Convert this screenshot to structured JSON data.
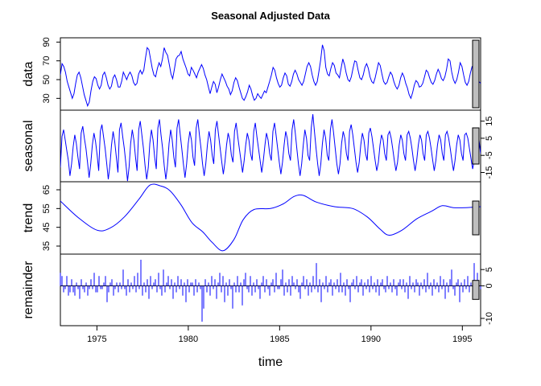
{
  "chart_data": {
    "type": "line",
    "title": "Seasonal Adjusted Data",
    "xlabel": "time",
    "x_start": 1973.0,
    "x_end": 1996.0,
    "x_ticks": [
      1975,
      1980,
      1985,
      1990,
      1995
    ],
    "frequency": 12,
    "colors": {
      "series": "#0000ff",
      "axis": "#000000",
      "bar_fill": "#bebebe"
    },
    "panels": [
      {
        "name": "data",
        "ylabel": "data",
        "style": "line",
        "ylim": [
          20,
          92
        ],
        "ticks": [
          30,
          50,
          70,
          90
        ],
        "tick_side": "left",
        "values": [
          55,
          67,
          64,
          58,
          48,
          42,
          36,
          30,
          35,
          46,
          55,
          58,
          52,
          43,
          34,
          28,
          22,
          26,
          38,
          48,
          53,
          51,
          44,
          40,
          44,
          55,
          58,
          52,
          44,
          40,
          43,
          52,
          55,
          50,
          42,
          42,
          48,
          58,
          54,
          50,
          55,
          58,
          54,
          47,
          44,
          46,
          56,
          60,
          56,
          60,
          73,
          84,
          82,
          72,
          62,
          55,
          53,
          62,
          68,
          64,
          72,
          84,
          79,
          76,
          66,
          56,
          51,
          61,
          72,
          75,
          76,
          80,
          72,
          67,
          62,
          56,
          54,
          63,
          60,
          56,
          52,
          58,
          62,
          66,
          62,
          55,
          50,
          42,
          35,
          42,
          48,
          45,
          36,
          42,
          50,
          56,
          52,
          48,
          43,
          40,
          34,
          38,
          47,
          52,
          49,
          42,
          36,
          30,
          28,
          32,
          37,
          44,
          40,
          33,
          28,
          30,
          35,
          32,
          30,
          34,
          38,
          36,
          42,
          48,
          55,
          63,
          60,
          52,
          46,
          42,
          44,
          52,
          57,
          54,
          45,
          43,
          48,
          56,
          60,
          56,
          50,
          47,
          44,
          48,
          56,
          64,
          68,
          64,
          55,
          48,
          44,
          48,
          59,
          71,
          87,
          81,
          63,
          56,
          54,
          62,
          68,
          65,
          57,
          55,
          52,
          62,
          72,
          66,
          57,
          50,
          48,
          53,
          62,
          70,
          69,
          60,
          52,
          50,
          55,
          63,
          67,
          62,
          53,
          48,
          46,
          52,
          60,
          68,
          65,
          56,
          48,
          45,
          47,
          53,
          58,
          55,
          48,
          43,
          40,
          44,
          52,
          57,
          53,
          46,
          41,
          34,
          30,
          36,
          44,
          49,
          47,
          42,
          43,
          46,
          53,
          60,
          58,
          52,
          47,
          45,
          49,
          56,
          61,
          57,
          51,
          49,
          53,
          61,
          72,
          70,
          58,
          50,
          46,
          50,
          58,
          68,
          64,
          55,
          47,
          44,
          48,
          57,
          64,
          63,
          57,
          50,
          48,
          46
        ]
      },
      {
        "name": "seasonal",
        "ylabel": "seasonal",
        "style": "line",
        "ylim": [
          -19,
          20
        ],
        "ticks": [
          15,
          5,
          -5,
          -15
        ],
        "tick_side": "right",
        "values": [
          -12,
          6,
          10,
          4,
          -2,
          -8,
          -17,
          -10,
          0,
          7,
          2,
          -6,
          -13,
          8,
          12,
          5,
          -1,
          -9,
          -18,
          -10,
          1,
          8,
          3,
          -5,
          -14,
          9,
          13,
          6,
          -1,
          -10,
          -19,
          -11,
          1,
          9,
          3,
          -6,
          -15,
          10,
          14,
          6,
          -1,
          -10,
          -20,
          -12,
          2,
          10,
          4,
          -6,
          -14,
          10,
          15,
          7,
          -1,
          -11,
          -19,
          -12,
          2,
          10,
          4,
          -6,
          -13,
          11,
          16,
          7,
          -1,
          -11,
          -19,
          -11,
          2,
          10,
          4,
          -6,
          -12,
          11,
          16,
          7,
          -1,
          -10,
          -18,
          -10,
          2,
          9,
          4,
          -6,
          -11,
          11,
          16,
          7,
          -1,
          -10,
          -17,
          -10,
          1,
          9,
          4,
          -5,
          -10,
          10,
          15,
          7,
          -1,
          -9,
          -16,
          -9,
          1,
          8,
          4,
          -5,
          -9,
          9,
          14,
          6,
          -1,
          -8,
          -15,
          -8,
          1,
          8,
          4,
          -4,
          -8,
          9,
          14,
          6,
          -1,
          -8,
          -15,
          -8,
          1,
          8,
          4,
          -4,
          -8,
          9,
          14,
          7,
          -1,
          -9,
          -16,
          -9,
          1,
          9,
          5,
          -4,
          -8,
          10,
          16,
          8,
          -1,
          -10,
          -17,
          -10,
          1,
          10,
          5,
          -5,
          -8,
          11,
          19,
          9,
          -1,
          -10,
          -17,
          -10,
          2,
          10,
          5,
          -5,
          -8,
          10,
          16,
          8,
          -1,
          -10,
          -16,
          -10,
          2,
          9,
          5,
          -4,
          -8,
          9,
          13,
          7,
          -1,
          -9,
          -15,
          -9,
          1,
          8,
          4,
          -4,
          -8,
          8,
          11,
          6,
          -1,
          -8,
          -14,
          -9,
          1,
          7,
          4,
          -4,
          -8,
          7,
          9,
          5,
          -1,
          -8,
          -14,
          -9,
          1,
          7,
          4,
          -4,
          -8,
          7,
          9,
          5,
          -1,
          -8,
          -14,
          -8,
          1,
          7,
          4,
          -4,
          -8,
          7,
          9,
          5,
          -1,
          -8,
          -14,
          -8,
          1,
          7,
          4,
          -4,
          -8,
          7,
          9,
          5,
          -1,
          -8,
          -14,
          -8,
          1,
          7,
          4,
          -4,
          -8,
          7,
          8,
          5,
          -1,
          -7,
          -13,
          -8,
          1,
          6,
          4,
          -4
        ]
      },
      {
        "name": "trend",
        "ylabel": "trend",
        "style": "line",
        "ylim": [
          32,
          68
        ],
        "ticks": [
          35,
          45,
          55,
          65
        ],
        "tick_side": "left",
        "knots_x": [
          1973.0,
          1974.0,
          1975.0,
          1975.7,
          1976.5,
          1977.3,
          1977.9,
          1978.5,
          1979.0,
          1979.6,
          1980.2,
          1980.8,
          1981.3,
          1981.9,
          1982.5,
          1983.0,
          1983.6,
          1984.5,
          1985.2,
          1985.8,
          1986.3,
          1987.0,
          1988.0,
          1989.0,
          1989.8,
          1990.5,
          1991.0,
          1991.7,
          1992.5,
          1993.3,
          1993.9,
          1994.5,
          1995.2,
          1996.0
        ],
        "knots_y": [
          59.0,
          50.0,
          43.5,
          44.5,
          50.5,
          60.0,
          67.5,
          67.0,
          64.5,
          57.0,
          47.5,
          42.5,
          37.0,
          32.5,
          38.5,
          49.0,
          54.5,
          55.0,
          57.5,
          61.5,
          62.0,
          58.5,
          56.0,
          55.0,
          50.5,
          44.0,
          40.8,
          43.5,
          49.5,
          53.5,
          56.5,
          55.5,
          55.5,
          56.0
        ]
      },
      {
        "name": "remainder",
        "ylabel": "remainder",
        "style": "bars",
        "ylim": [
          -11.5,
          9
        ],
        "ticks": [
          5,
          0,
          -10
        ],
        "tick_side": "right",
        "values": [
          4,
          3,
          -2,
          -1,
          3,
          -3,
          -2,
          2,
          -2,
          -3,
          1,
          -1,
          -4,
          2,
          -1,
          -2,
          1,
          -3,
          -1,
          2,
          -1,
          4,
          -2,
          -2,
          3,
          -1,
          -1,
          1,
          3,
          -5,
          -2,
          1,
          2,
          -3,
          -1,
          1,
          -2,
          1,
          -1,
          5,
          -1,
          -3,
          2,
          -2,
          1,
          -1,
          3,
          -2,
          4,
          -1,
          8,
          -3,
          1,
          -2,
          2,
          -4,
          3,
          -1,
          1,
          2,
          -2,
          4,
          -1,
          -3,
          5,
          -2,
          1,
          3,
          -1,
          2,
          -4,
          1,
          -2,
          3,
          -1,
          2,
          -3,
          1,
          -5,
          2,
          -2,
          1,
          1,
          -3,
          2,
          -2,
          1,
          -1,
          -11,
          -7,
          2,
          -2,
          1,
          -3,
          3,
          -1,
          2,
          -4,
          1,
          4,
          -2,
          3,
          -5,
          1,
          -3,
          2,
          -1,
          -7,
          1,
          -2,
          3,
          -2,
          1,
          -6,
          2,
          4,
          -1,
          -2,
          3,
          -3,
          1,
          -2,
          2,
          -1,
          -4,
          1,
          3,
          -2,
          2,
          -1,
          -3,
          1,
          2,
          -2,
          4,
          -1,
          -1,
          2,
          5,
          -3,
          1,
          -2,
          2,
          -3,
          3,
          1,
          -1,
          2,
          -2,
          -4,
          1,
          3,
          -1,
          2,
          -3,
          1,
          -2,
          3,
          -1,
          7,
          -2,
          2,
          -5,
          1,
          -1,
          3,
          -2,
          1,
          2,
          -3,
          1,
          -1,
          2,
          -2,
          4,
          -2,
          1,
          -3,
          2,
          -1,
          -5,
          1,
          2,
          -1,
          3,
          -2,
          1,
          2,
          -3,
          1,
          -1,
          2,
          -2,
          3,
          -1,
          1,
          -2,
          2,
          -3,
          1,
          2,
          -1,
          -2,
          3,
          -1,
          1,
          -2,
          2,
          -1,
          -3,
          1,
          2,
          -1,
          2,
          -2,
          1,
          -4,
          3,
          -1,
          1,
          -2,
          2,
          1,
          -3,
          1,
          -1,
          2,
          -2,
          4,
          -1,
          1,
          -3,
          2,
          -1,
          1,
          -2,
          3,
          -1,
          2,
          -4,
          1,
          -2,
          2,
          5,
          -1,
          -3,
          1,
          2,
          -5,
          1,
          -2,
          2,
          -1,
          3,
          -2,
          1,
          -1,
          7,
          -2,
          4,
          -2,
          -1
        ]
      }
    ]
  }
}
